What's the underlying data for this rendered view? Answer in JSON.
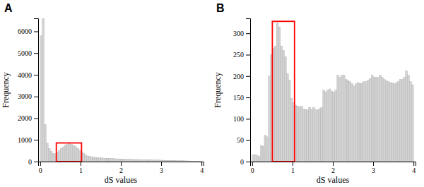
{
  "chart_data": [
    {
      "type": "histogram",
      "title": "A",
      "xlabel": "dS values",
      "ylabel": "Frequency",
      "xlim": [
        -0.05,
        4.05
      ],
      "ylim": [
        0,
        6600
      ],
      "xticks": [
        0,
        1,
        2,
        3,
        4
      ],
      "yticks": [
        0,
        1000,
        2000,
        3000,
        4000,
        5000,
        6000
      ],
      "bins": [
        0,
        0.05,
        0.1,
        0.15,
        0.2,
        0.25,
        0.3,
        0.35,
        0.4,
        0.45,
        0.5,
        0.55,
        0.6,
        0.65,
        0.7,
        0.75,
        0.8,
        0.85,
        0.9,
        0.95,
        1,
        1.05,
        1.1,
        1.15,
        1.2,
        1.25,
        1.3,
        1.35,
        1.4,
        1.45,
        1.5,
        1.55,
        1.6,
        1.65,
        1.7,
        1.75,
        1.8,
        1.85,
        1.9,
        1.95,
        2,
        2.05,
        2.1,
        2.15,
        2.2,
        2.25,
        2.3,
        2.35,
        2.4,
        2.45,
        2.5,
        2.55,
        2.6,
        2.65,
        2.7,
        2.75,
        2.8,
        2.85,
        2.9,
        2.95,
        3,
        3.05,
        3.1,
        3.15,
        3.2,
        3.25,
        3.3,
        3.35,
        3.4,
        3.45,
        3.5,
        3.55,
        3.6,
        3.65,
        3.7,
        3.75,
        3.8,
        3.85,
        3.9,
        3.95,
        4
      ],
      "values": [
        5800,
        6600,
        1700,
        850,
        600,
        480,
        380,
        360,
        430,
        510,
        610,
        680,
        760,
        800,
        820,
        790,
        750,
        690,
        610,
        530,
        460,
        390,
        310,
        260,
        240,
        215,
        205,
        195,
        185,
        175,
        168,
        162,
        157,
        152,
        147,
        142,
        137,
        132,
        127,
        122,
        117,
        112,
        110,
        107,
        105,
        102,
        100,
        97,
        95,
        92,
        90,
        87,
        85,
        82,
        80,
        77,
        75,
        72,
        70,
        67,
        65,
        62,
        60,
        57,
        55,
        52,
        50,
        47,
        45,
        42,
        40,
        37,
        35,
        32,
        30,
        27,
        25,
        22,
        20,
        17
      ],
      "color": "#d3d3d3",
      "grid": false,
      "highlight": {
        "x": 0.4,
        "width": 0.625,
        "y": 0,
        "height": 860,
        "color": "red"
      }
    },
    {
      "type": "histogram",
      "title": "B",
      "xlabel": "dS values",
      "ylabel": "Frequency",
      "xlim": [
        -0.05,
        4.05
      ],
      "ylim": [
        0,
        335
      ],
      "xticks": [
        0,
        1,
        2,
        3,
        4
      ],
      "yticks": [
        0,
        50,
        100,
        150,
        200,
        250,
        300
      ],
      "bins": [
        0,
        0.05,
        0.1,
        0.15,
        0.2,
        0.25,
        0.3,
        0.35,
        0.4,
        0.45,
        0.5,
        0.55,
        0.6,
        0.65,
        0.7,
        0.75,
        0.8,
        0.85,
        0.9,
        0.95,
        1,
        1.05,
        1.1,
        1.15,
        1.2,
        1.25,
        1.3,
        1.35,
        1.4,
        1.45,
        1.5,
        1.55,
        1.6,
        1.65,
        1.7,
        1.75,
        1.8,
        1.85,
        1.9,
        1.95,
        2,
        2.05,
        2.1,
        2.15,
        2.2,
        2.25,
        2.3,
        2.35,
        2.4,
        2.45,
        2.5,
        2.55,
        2.6,
        2.65,
        2.7,
        2.75,
        2.8,
        2.85,
        2.9,
        2.95,
        3,
        3.05,
        3.1,
        3.15,
        3.2,
        3.25,
        3.3,
        3.35,
        3.4,
        3.45,
        3.5,
        3.55,
        3.6,
        3.65,
        3.7,
        3.75,
        3.8,
        3.85,
        3.9,
        3.95,
        4
      ],
      "values": [
        16,
        16,
        14,
        12,
        38,
        36,
        62,
        58,
        200,
        250,
        265,
        270,
        325,
        315,
        270,
        260,
        245,
        205,
        190,
        148,
        138,
        132,
        130,
        128,
        130,
        123,
        122,
        121,
        127,
        122,
        127,
        122,
        121,
        124,
        127,
        167,
        163,
        167,
        170,
        164,
        162,
        167,
        202,
        197,
        202,
        202,
        192,
        190,
        187,
        182,
        177,
        182,
        185,
        182,
        184,
        187,
        187,
        190,
        194,
        202,
        197,
        197,
        197,
        202,
        197,
        192,
        189,
        187,
        185,
        184,
        182,
        184,
        187,
        192,
        192,
        197,
        212,
        202,
        187,
        180
      ],
      "color": "#d3d3d3",
      "grid": false,
      "highlight": {
        "x": 0.5,
        "width": 0.55,
        "y": 0,
        "height": 328,
        "color": "red"
      }
    }
  ]
}
